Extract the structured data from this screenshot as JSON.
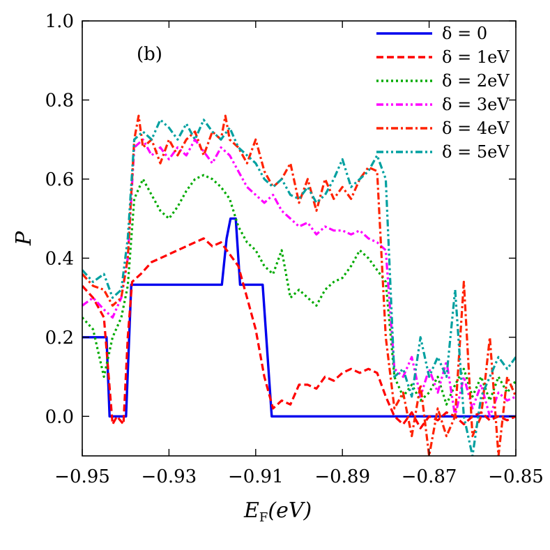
{
  "chart_data": {
    "type": "line",
    "panel_label": "(b)",
    "xlabel": "E_F(eV)",
    "xlabel_main": "E",
    "xlabel_sub": "F",
    "xlabel_tail": "(eV)",
    "ylabel": "P",
    "xlim": [
      -0.95,
      -0.85
    ],
    "ylim": [
      -0.1,
      1.0
    ],
    "xticks": [
      -0.95,
      -0.93,
      -0.91,
      -0.89,
      -0.87,
      -0.85
    ],
    "xtick_labels": [
      "−0.95",
      "−0.93",
      "−0.91",
      "−0.89",
      "−0.87",
      "−0.85"
    ],
    "yticks": [
      0.0,
      0.2,
      0.4,
      0.6,
      0.8,
      1.0
    ],
    "ytick_labels": [
      "0.0",
      "0.2",
      "0.4",
      "0.6",
      "0.8",
      "1.0"
    ],
    "legend_position": "top-right",
    "series": [
      {
        "name": "δ = 0",
        "color": "#0000ee",
        "dash": "solid",
        "x": [
          -0.95,
          -0.9444,
          -0.9437,
          -0.9405,
          -0.9399,
          -0.9387,
          -0.9178,
          -0.9167,
          -0.9158,
          -0.9146,
          -0.9136,
          -0.9084,
          -0.9063,
          -0.85
        ],
        "y": [
          0.2,
          0.2,
          0.0,
          0.0,
          0.0,
          0.333,
          0.333,
          0.45,
          0.5,
          0.5,
          0.333,
          0.333,
          0.0,
          0.0
        ]
      },
      {
        "name": "δ = 1eV",
        "color": "#ff0000",
        "dash": "dashed",
        "x": [
          -0.95,
          -0.9475,
          -0.945,
          -0.943,
          -0.942,
          -0.9405,
          -0.9395,
          -0.9385,
          -0.9365,
          -0.934,
          -0.932,
          -0.93,
          -0.928,
          -0.926,
          -0.924,
          -0.922,
          -0.92,
          -0.918,
          -0.916,
          -0.914,
          -0.912,
          -0.91,
          -0.908,
          -0.906,
          -0.904,
          -0.902,
          -0.9,
          -0.898,
          -0.896,
          -0.894,
          -0.892,
          -0.89,
          -0.888,
          -0.886,
          -0.884,
          -0.882,
          -0.88,
          -0.878,
          -0.876,
          -0.874,
          -0.872,
          -0.87,
          -0.868,
          -0.866,
          -0.864,
          -0.862,
          -0.86,
          -0.858,
          -0.856,
          -0.854,
          -0.852,
          -0.85
        ],
        "y": [
          0.33,
          0.3,
          0.25,
          -0.02,
          0.0,
          -0.02,
          0.2,
          0.34,
          0.36,
          0.39,
          0.4,
          0.41,
          0.42,
          0.43,
          0.44,
          0.45,
          0.43,
          0.44,
          0.41,
          0.38,
          0.3,
          0.22,
          0.1,
          0.02,
          0.04,
          0.03,
          0.08,
          0.08,
          0.07,
          0.1,
          0.09,
          0.11,
          0.12,
          0.11,
          0.12,
          0.11,
          0.05,
          0.0,
          -0.02,
          0.01,
          -0.03,
          0.0,
          -0.01,
          0.01,
          0.0,
          -0.02,
          0.0,
          0.01,
          -0.01,
          0.0,
          -0.01,
          0.0
        ]
      },
      {
        "name": "δ = 2eV",
        "color": "#00aa00",
        "dash": "dotted",
        "x": [
          -0.95,
          -0.9475,
          -0.945,
          -0.943,
          -0.941,
          -0.9395,
          -0.938,
          -0.936,
          -0.934,
          -0.932,
          -0.93,
          -0.928,
          -0.926,
          -0.924,
          -0.922,
          -0.92,
          -0.918,
          -0.916,
          -0.914,
          -0.912,
          -0.91,
          -0.908,
          -0.906,
          -0.904,
          -0.902,
          -0.9,
          -0.898,
          -0.896,
          -0.894,
          -0.892,
          -0.89,
          -0.888,
          -0.886,
          -0.884,
          -0.882,
          -0.88,
          -0.878,
          -0.876,
          -0.874,
          -0.872,
          -0.87,
          -0.868,
          -0.866,
          -0.864,
          -0.862,
          -0.86,
          -0.858,
          -0.856,
          -0.854,
          -0.852,
          -0.85
        ],
        "y": [
          0.25,
          0.22,
          0.1,
          0.2,
          0.25,
          0.33,
          0.55,
          0.6,
          0.56,
          0.52,
          0.5,
          0.53,
          0.57,
          0.6,
          0.61,
          0.6,
          0.58,
          0.55,
          0.48,
          0.44,
          0.42,
          0.38,
          0.36,
          0.42,
          0.3,
          0.32,
          0.3,
          0.28,
          0.32,
          0.34,
          0.35,
          0.38,
          0.42,
          0.4,
          0.37,
          0.34,
          0.1,
          0.05,
          0.08,
          0.04,
          0.06,
          0.1,
          0.03,
          0.08,
          0.12,
          0.05,
          0.1,
          0.04,
          0.1,
          0.06,
          0.09
        ]
      },
      {
        "name": "δ = 3eV",
        "color": "#ff00ff",
        "dash": "dashdotdot",
        "x": [
          -0.95,
          -0.9475,
          -0.945,
          -0.943,
          -0.941,
          -0.9395,
          -0.938,
          -0.936,
          -0.934,
          -0.932,
          -0.93,
          -0.928,
          -0.926,
          -0.924,
          -0.922,
          -0.92,
          -0.918,
          -0.916,
          -0.914,
          -0.912,
          -0.91,
          -0.908,
          -0.906,
          -0.904,
          -0.902,
          -0.9,
          -0.898,
          -0.896,
          -0.894,
          -0.892,
          -0.89,
          -0.888,
          -0.886,
          -0.884,
          -0.882,
          -0.88,
          -0.878,
          -0.876,
          -0.874,
          -0.872,
          -0.87,
          -0.868,
          -0.866,
          -0.864,
          -0.862,
          -0.86,
          -0.858,
          -0.856,
          -0.854,
          -0.852,
          -0.85
        ],
        "y": [
          0.28,
          0.3,
          0.27,
          0.25,
          0.3,
          0.4,
          0.68,
          0.7,
          0.66,
          0.68,
          0.65,
          0.68,
          0.66,
          0.7,
          0.67,
          0.64,
          0.68,
          0.66,
          0.62,
          0.58,
          0.56,
          0.54,
          0.56,
          0.52,
          0.5,
          0.48,
          0.49,
          0.46,
          0.48,
          0.47,
          0.47,
          0.46,
          0.47,
          0.45,
          0.44,
          0.42,
          0.12,
          0.1,
          0.15,
          0.05,
          0.12,
          0.06,
          0.14,
          0.0,
          0.1,
          0.02,
          0.08,
          0.0,
          0.06,
          0.04,
          0.05
        ]
      },
      {
        "name": "δ = 4eV",
        "color": "#ff2200",
        "dash": "dashdot",
        "x": [
          -0.95,
          -0.9475,
          -0.945,
          -0.943,
          -0.941,
          -0.9395,
          -0.938,
          -0.937,
          -0.936,
          -0.934,
          -0.932,
          -0.93,
          -0.928,
          -0.926,
          -0.924,
          -0.922,
          -0.92,
          -0.918,
          -0.917,
          -0.916,
          -0.914,
          -0.912,
          -0.91,
          -0.908,
          -0.906,
          -0.904,
          -0.902,
          -0.9,
          -0.898,
          -0.896,
          -0.894,
          -0.892,
          -0.89,
          -0.888,
          -0.886,
          -0.884,
          -0.882,
          -0.88,
          -0.878,
          -0.876,
          -0.874,
          -0.872,
          -0.87,
          -0.868,
          -0.866,
          -0.864,
          -0.862,
          -0.86,
          -0.858,
          -0.856,
          -0.854,
          -0.852,
          -0.85
        ],
        "y": [
          0.36,
          0.33,
          0.32,
          0.28,
          0.3,
          0.4,
          0.7,
          0.76,
          0.68,
          0.7,
          0.64,
          0.7,
          0.66,
          0.7,
          0.72,
          0.66,
          0.72,
          0.7,
          0.76,
          0.7,
          0.68,
          0.64,
          0.7,
          0.62,
          0.58,
          0.6,
          0.64,
          0.54,
          0.6,
          0.52,
          0.6,
          0.55,
          0.58,
          0.55,
          0.6,
          0.63,
          0.62,
          0.2,
          0.02,
          0.06,
          -0.05,
          0.08,
          -0.1,
          0.02,
          -0.05,
          0.0,
          0.34,
          -0.05,
          0.0,
          0.2,
          -0.1,
          0.1,
          0.05
        ]
      },
      {
        "name": "δ = 5eV",
        "color": "#00a0a0",
        "dash": "dashdotdot",
        "x": [
          -0.95,
          -0.9475,
          -0.945,
          -0.943,
          -0.941,
          -0.9395,
          -0.938,
          -0.936,
          -0.934,
          -0.932,
          -0.93,
          -0.928,
          -0.926,
          -0.924,
          -0.922,
          -0.92,
          -0.918,
          -0.916,
          -0.914,
          -0.912,
          -0.91,
          -0.908,
          -0.906,
          -0.904,
          -0.902,
          -0.9,
          -0.898,
          -0.896,
          -0.894,
          -0.892,
          -0.89,
          -0.888,
          -0.886,
          -0.884,
          -0.882,
          -0.88,
          -0.878,
          -0.876,
          -0.874,
          -0.872,
          -0.87,
          -0.868,
          -0.866,
          -0.864,
          -0.862,
          -0.86,
          -0.858,
          -0.856,
          -0.854,
          -0.852,
          -0.85
        ],
        "y": [
          0.37,
          0.34,
          0.36,
          0.3,
          0.32,
          0.45,
          0.7,
          0.72,
          0.7,
          0.75,
          0.73,
          0.7,
          0.74,
          0.7,
          0.75,
          0.72,
          0.7,
          0.73,
          0.68,
          0.66,
          0.64,
          0.6,
          0.58,
          0.6,
          0.56,
          0.55,
          0.58,
          0.54,
          0.56,
          0.6,
          0.65,
          0.58,
          0.6,
          0.62,
          0.66,
          0.6,
          0.1,
          0.12,
          0.05,
          0.2,
          0.1,
          0.15,
          0.1,
          0.32,
          0.0,
          -0.1,
          0.05,
          0.1,
          0.15,
          0.12,
          0.15
        ]
      }
    ]
  }
}
